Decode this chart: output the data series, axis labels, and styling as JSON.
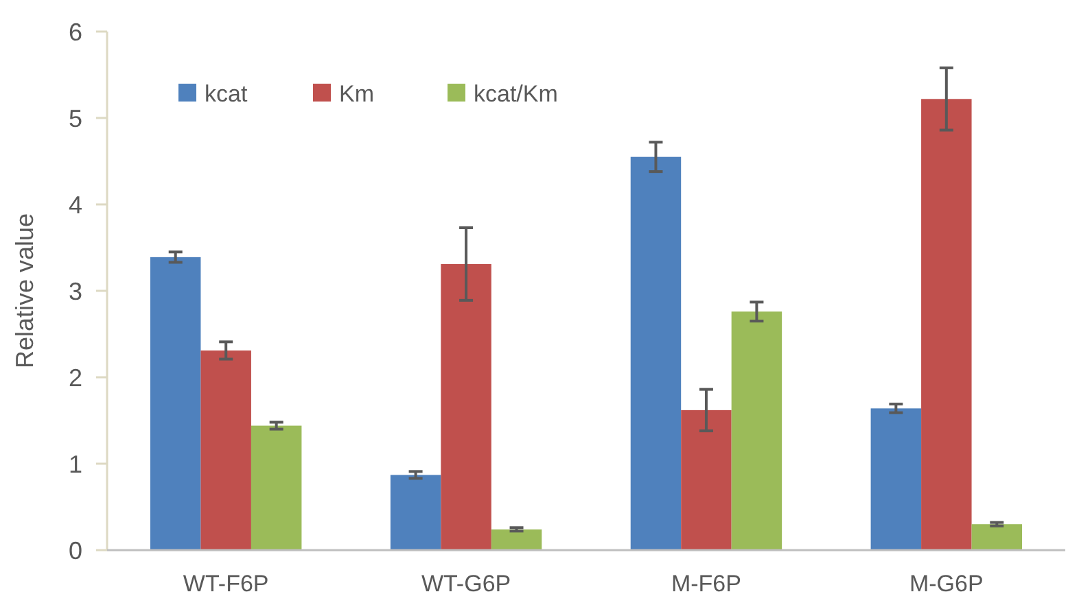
{
  "chart_data": {
    "type": "bar",
    "ylabel": "Relative value",
    "categories": [
      "WT-F6P",
      "WT-G6P",
      "M-F6P",
      "M-G6P"
    ],
    "ylim": [
      0,
      6
    ],
    "yticks": [
      0,
      1,
      2,
      3,
      4,
      5,
      6
    ],
    "legend": "top left",
    "grid": false,
    "series": [
      {
        "name": "kcat",
        "color": "#4f81bd",
        "values": [
          3.39,
          0.87,
          4.55,
          1.64
        ],
        "errors": [
          0.06,
          0.04,
          0.17,
          0.05
        ]
      },
      {
        "name": "Km",
        "color": "#c0504d",
        "values": [
          2.31,
          3.31,
          1.62,
          5.22
        ],
        "errors": [
          0.1,
          0.42,
          0.24,
          0.36
        ]
      },
      {
        "name": "kcat/Km",
        "color": "#9bbb59",
        "values": [
          1.44,
          0.24,
          2.76,
          0.3
        ],
        "errors": [
          0.04,
          0.02,
          0.11,
          0.02
        ]
      }
    ]
  }
}
